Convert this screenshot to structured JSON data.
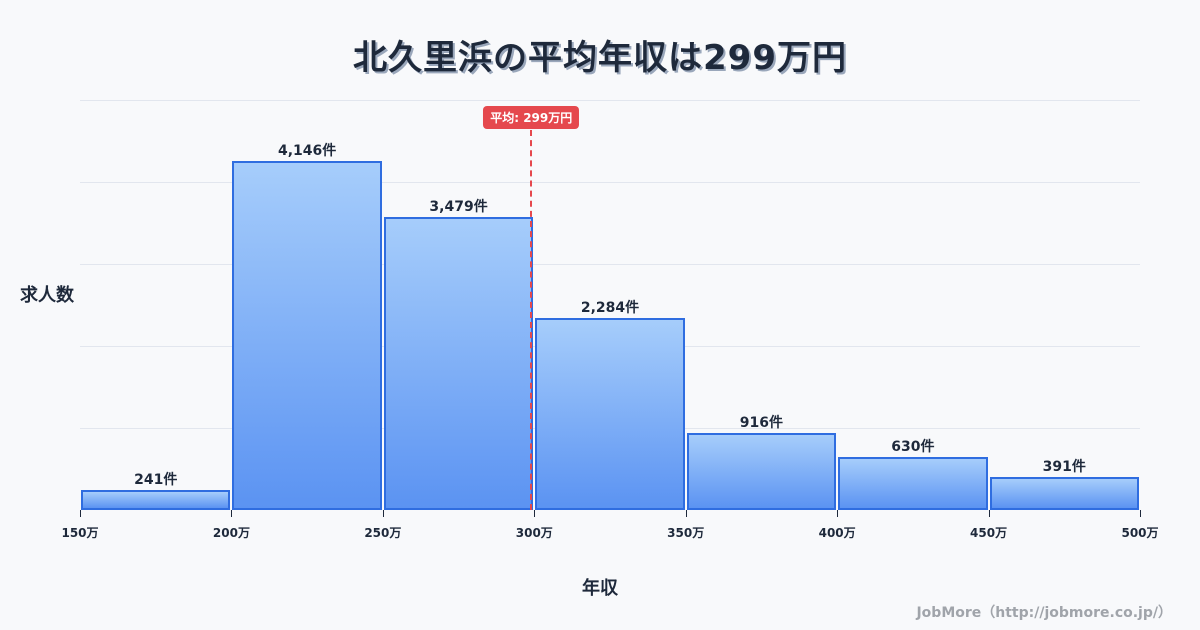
{
  "title": "北久里浜の平均年収は299万円",
  "y_axis_label": "求人数",
  "x_axis_label": "年収",
  "credit": "JobMore（http://jobmore.co.jp/）",
  "mean_badge": "平均: 299万円",
  "colors": {
    "bar_top": "#a6cdfb",
    "bar_bottom": "#5b93f2",
    "bar_border": "#2f6de0",
    "mean_line": "#e5484d",
    "text": "#1e293b",
    "grid": "#e2e6ee",
    "background": "#f8f9fb"
  },
  "chart_data": {
    "type": "bar",
    "title": "北久里浜の平均年収は299万円",
    "xlabel": "年収",
    "ylabel": "求人数",
    "categories": [
      "150万-200万",
      "200万-250万",
      "250万-300万",
      "300万-350万",
      "350万-400万",
      "400万-450万",
      "450万-500万"
    ],
    "values": [
      241,
      4146,
      3479,
      2284,
      916,
      630,
      391
    ],
    "value_labels": [
      "241件",
      "4,146件",
      "3,479件",
      "2,284件",
      "916件",
      "630件",
      "391件"
    ],
    "x_ticks": [
      "150万",
      "200万",
      "250万",
      "300万",
      "350万",
      "400万",
      "450万",
      "500万"
    ],
    "x_range": [
      150,
      500
    ],
    "ylim": [
      0,
      4875
    ],
    "grid": true,
    "mean": 299,
    "mean_label": "平均: 299万円"
  }
}
